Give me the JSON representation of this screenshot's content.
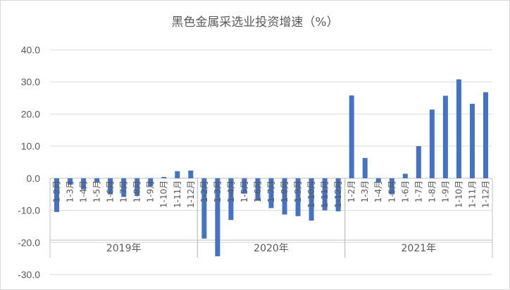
{
  "chart_data": {
    "type": "bar",
    "title": "黑色金属采选业投资增速（%）",
    "ylim": [
      -30,
      40
    ],
    "ytick_step": 10,
    "ytick_labels": [
      "40.0",
      "30.0",
      "20.0",
      "10.0",
      "0.0",
      "-10.0",
      "-20.0",
      "-30.0"
    ],
    "grid": true,
    "color": "#4472C4",
    "groups": [
      {
        "name": "2019年",
        "categories": [
          "1-2月",
          "1-3月",
          "1-4月",
          "1-5月",
          "1-6月",
          "1-7月",
          "1-8月",
          "1-9月",
          "1-10月",
          "1-11月",
          "1-12月"
        ],
        "values": [
          -10.5,
          -2.0,
          -3.5,
          -1.3,
          -5.0,
          -5.8,
          -5.5,
          -2.5,
          0.4,
          2.2,
          2.4
        ]
      },
      {
        "name": "2020年",
        "categories": [
          "1-2月",
          "1-3月",
          "1-4月",
          "1-5月",
          "1-6月",
          "1-7月",
          "1-8月",
          "1-9月",
          "1-10月",
          "1-11月",
          "1-12月"
        ],
        "values": [
          -18.8,
          -24.3,
          -13.0,
          -4.8,
          -7.0,
          -9.3,
          -11.3,
          -11.8,
          -13.2,
          -10.0,
          -10.3
        ]
      },
      {
        "name": "2021年",
        "categories": [
          "1-2月",
          "1-3月",
          "1-4月",
          "1-5月",
          "1-6月",
          "1-7月",
          "1-8月",
          "1-9月",
          "1-10月",
          "1-11月",
          "1-12月"
        ],
        "values": [
          25.8,
          6.3,
          -1.3,
          -5.0,
          1.4,
          10.0,
          21.4,
          25.7,
          30.8,
          23.2,
          26.8
        ]
      }
    ]
  }
}
